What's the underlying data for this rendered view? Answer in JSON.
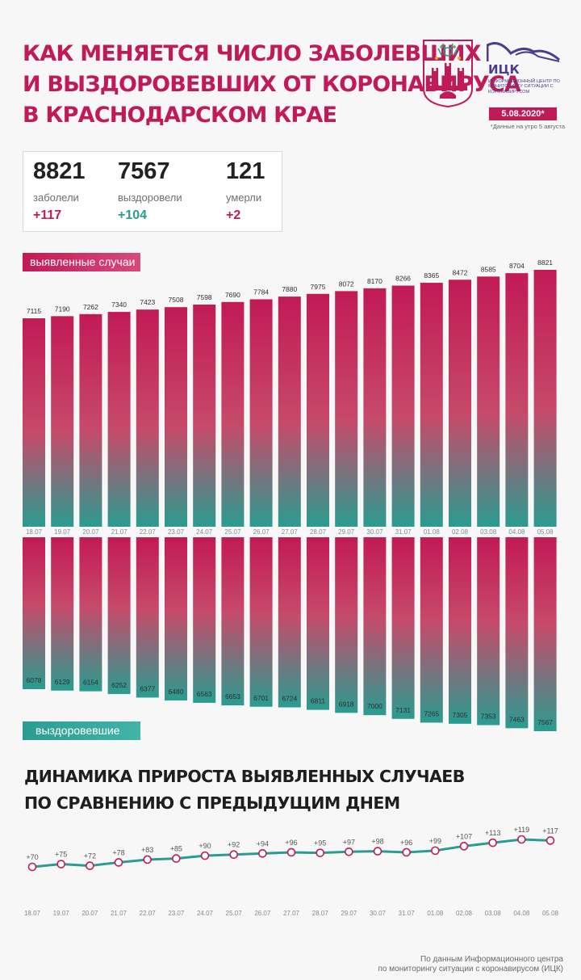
{
  "header": {
    "title_lines": [
      "КАК МЕНЯЕТСЯ ЧИСЛО ЗАБОЛЕВШИХ",
      "И ВЫЗДОРОВЕВШИХ ОТ КОРОНАВИРУСА",
      "В КРАСНОДАРСКОМ КРАЕ"
    ],
    "ick_name": "ИЦК",
    "ick_subtitle": "Информационный центр по мониторингу ситуации с коронавирусом",
    "date": "5.08.2020*",
    "date_note": "*Данные на утро 5 августа"
  },
  "stats": [
    {
      "value": "8821",
      "label": "заболели",
      "delta": "+117"
    },
    {
      "value": "7567",
      "label": "выздоровели",
      "delta": "+104"
    },
    {
      "value": "121",
      "label": "умерли",
      "delta": "+2"
    }
  ],
  "colors": {
    "accent": "#c21a56",
    "teal": "#2a9c90",
    "line": "#2a9c90",
    "marker_border": "#c21a56",
    "ick": "#4b3d91"
  },
  "legend": {
    "cases": "выявленные случаи",
    "recovered": "выздоровевшие"
  },
  "section2": {
    "title_lines": [
      "ДИНАМИКА ПРИРОСТА ВЫЯВЛЕННЫХ СЛУЧАЕВ",
      "ПО СРАВНЕНИЮ С ПРЕДЫДУЩИМ ДНЕМ"
    ]
  },
  "source_lines": [
    "По данным Информационного центра",
    "по мониторингу ситуации с коронавирусом (ИЦК)"
  ],
  "chart_data": [
    {
      "type": "bar",
      "categories": [
        "18.07",
        "19.07",
        "20.07",
        "21.07",
        "22.07",
        "23.07",
        "24.07",
        "25.07",
        "26.07",
        "27.07",
        "28.07",
        "29.07",
        "30.07",
        "31.07",
        "01.08",
        "02.08",
        "03.08",
        "04.08",
        "05.08"
      ],
      "series": [
        {
          "name": "выявленные случаи",
          "values": [
            7115,
            7190,
            7262,
            7340,
            7423,
            7508,
            7598,
            7690,
            7784,
            7880,
            7975,
            8072,
            8170,
            8266,
            8365,
            8472,
            8585,
            8704,
            8821
          ]
        },
        {
          "name": "выздоровевшие",
          "values": [
            6078,
            6129,
            6154,
            6252,
            6377,
            6480,
            6563,
            6653,
            6701,
            6724,
            6811,
            6918,
            7000,
            7131,
            7265,
            7305,
            7353,
            7463,
            7567
          ]
        }
      ]
    },
    {
      "type": "line",
      "title": "ДИНАМИКА ПРИРОСТА ВЫЯВЛЕННЫХ СЛУЧАЕВ ПО СРАВНЕНИЮ С ПРЕДЫДУЩИМ ДНЕМ",
      "categories": [
        "18.07",
        "19.07",
        "20.07",
        "21.07",
        "22.07",
        "23.07",
        "24.07",
        "25.07",
        "26.07",
        "27.07",
        "28.07",
        "29.07",
        "30.07",
        "31.07",
        "01.08",
        "02.08",
        "03.08",
        "04.08",
        "05.08"
      ],
      "values": [
        70,
        75,
        72,
        78,
        83,
        85,
        90,
        92,
        94,
        96,
        95,
        97,
        98,
        96,
        99,
        107,
        113,
        119,
        117
      ],
      "labels": [
        "+70",
        "+75",
        "+72",
        "+78",
        "+83",
        "+85",
        "+90",
        "+92",
        "+94",
        "+96",
        "+95",
        "+97",
        "+98",
        "+96",
        "+99",
        "+107",
        "+113",
        "+119",
        "+117"
      ]
    }
  ]
}
